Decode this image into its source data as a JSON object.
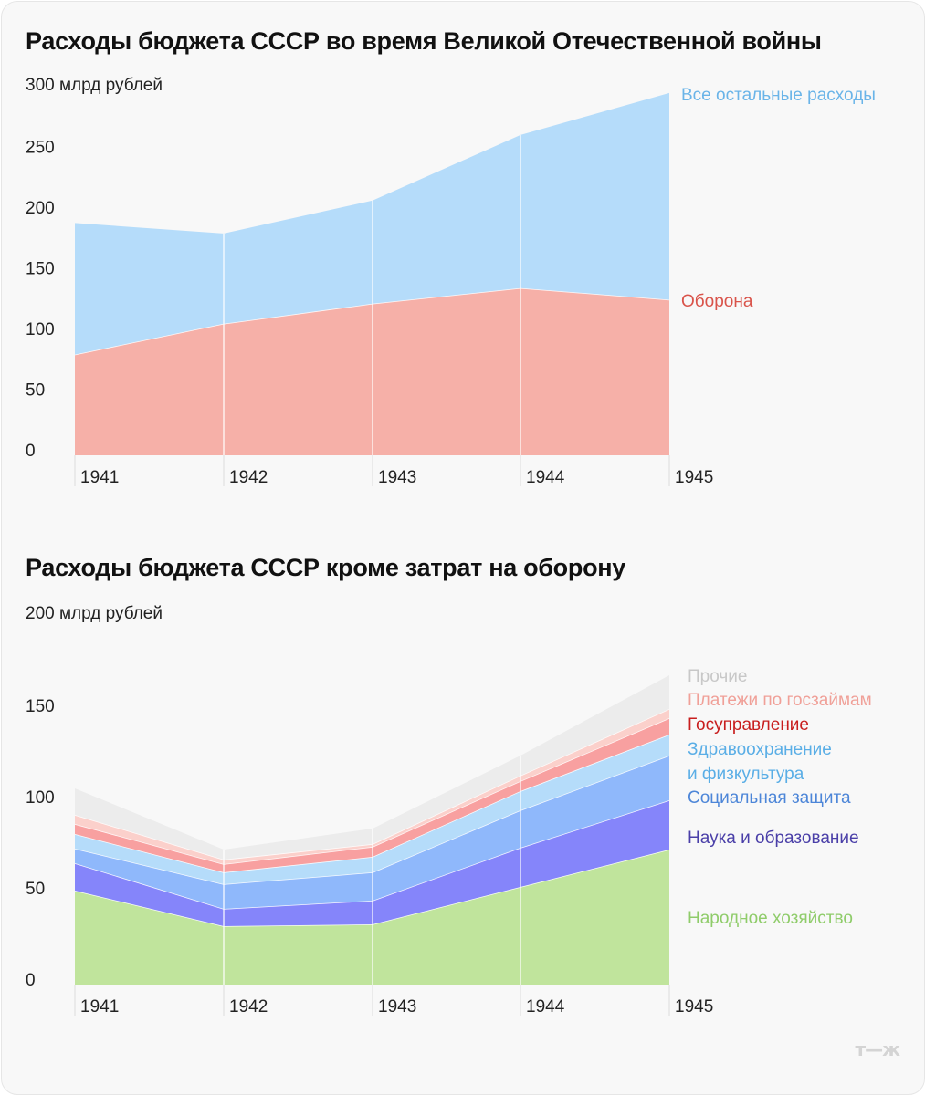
{
  "logo": "т—ж",
  "chart_data": [
    {
      "type": "area",
      "stacked": true,
      "title": "Расходы бюджета СССР во время Великой Отечественной войны",
      "ylabel": "300 млрд рублей",
      "xlabel": "",
      "x": [
        "1941",
        "1942",
        "1943",
        "1944",
        "1945"
      ],
      "ylim": [
        0,
        300
      ],
      "yticks": [
        "0",
        "50",
        "100",
        "150",
        "200",
        "250"
      ],
      "grid": false,
      "legend": "right",
      "series": [
        {
          "name": "Оборона",
          "color": "#f6b0a8",
          "label_color": "#d9534a",
          "values": [
            83,
            108.4,
            125,
            137.8,
            128.2
          ]
        },
        {
          "name": "Все остальные расходы",
          "color": "#b5dcfa",
          "label_color": "#6ab4e8",
          "values": [
            108.4,
            74.4,
            85,
            126.2,
            170.4
          ]
        }
      ]
    },
    {
      "type": "area",
      "stacked": true,
      "title": "Расходы бюджета СССР кроме затрат на оборону",
      "ylabel": "200 млрд рублей",
      "xlabel": "",
      "x": [
        "1941",
        "1942",
        "1943",
        "1944",
        "1945"
      ],
      "ylim": [
        0,
        200
      ],
      "yticks": [
        "0",
        "50",
        "100",
        "150"
      ],
      "grid": false,
      "legend": "right",
      "series": [
        {
          "name": "Народное хозяйство",
          "color": "#c0e49c",
          "label_color": "#8fcc6a",
          "values": [
            51.5,
            32,
            33,
            53.5,
            74
          ]
        },
        {
          "name": "Наука и образование",
          "color": "#8585fa",
          "label_color": "#4a3fa8",
          "values": [
            15,
            9.5,
            13,
            21.5,
            27
          ]
        },
        {
          "name": "Социальная защита",
          "color": "#8fb8fb",
          "label_color": "#4d86d8",
          "values": [
            8,
            13.5,
            15.5,
            20.5,
            24.5
          ]
        },
        {
          "name": "Здравоохранение и физкультура",
          "label_lines": [
            "Здравоохранение",
            "и физкультура"
          ],
          "color": "#b5dcfa",
          "label_color": "#5aaee6",
          "values": [
            8,
            6.5,
            8.5,
            10.5,
            11.5
          ]
        },
        {
          "name": "Госуправление",
          "color": "#f8a0a0",
          "label_color": "#c81e1e",
          "values": [
            5.5,
            4.5,
            5.5,
            5.5,
            9
          ]
        },
        {
          "name": "Платежи по госзаймам",
          "color": "#fbd0cb",
          "label_color": "#f0a098",
          "values": [
            5,
            2.5,
            1.5,
            3,
            5
          ]
        },
        {
          "name": "Прочие",
          "color": "#ececec",
          "label_color": "#c8c8c8",
          "values": [
            14.5,
            5.5,
            8.5,
            11,
            18.5
          ]
        }
      ]
    }
  ]
}
